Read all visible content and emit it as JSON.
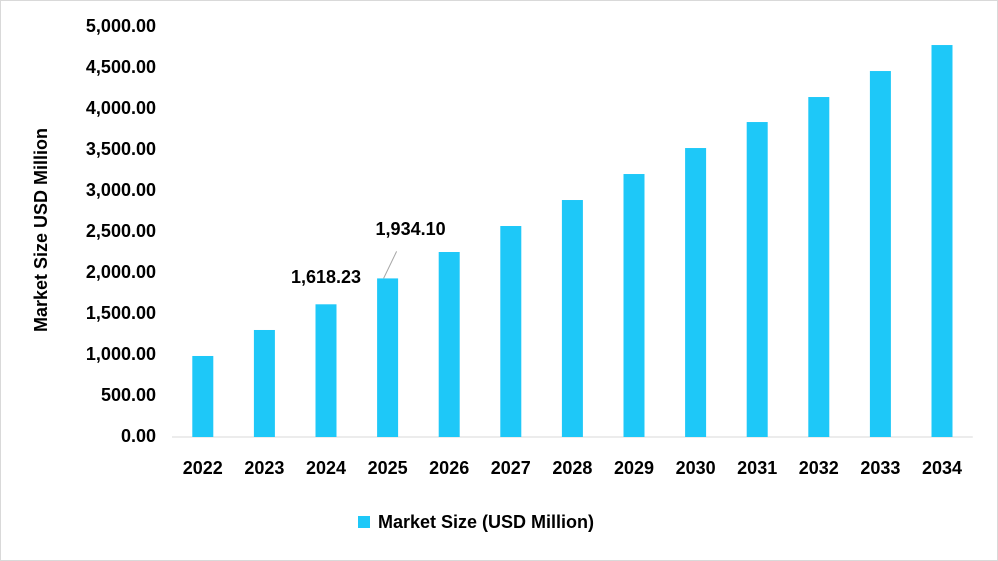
{
  "chart_data": {
    "type": "bar",
    "y_label": "Market Size USD Million",
    "categories": [
      "2022",
      "2023",
      "2024",
      "2025",
      "2026",
      "2027",
      "2028",
      "2029",
      "2030",
      "2031",
      "2032",
      "2033",
      "2034"
    ],
    "series": [
      {
        "name": "Market Size (USD Million)",
        "color": "#1ec8f8",
        "values": [
          988,
          1305,
          1618.23,
          1934.1,
          2256,
          2573,
          2890,
          3207,
          3524,
          3841,
          4146,
          4463,
          4780
        ],
        "value_labels": [
          null,
          null,
          "1,618.23",
          "1,934.10",
          null,
          null,
          null,
          null,
          null,
          null,
          null,
          null,
          null
        ]
      }
    ],
    "ylim": [
      0,
      5000
    ],
    "yticks": [
      {
        "value": 0,
        "label": "0.00"
      },
      {
        "value": 500,
        "label": "500.00"
      },
      {
        "value": 1000,
        "label": "1,000.00"
      },
      {
        "value": 1500,
        "label": "1,500.00"
      },
      {
        "value": 2000,
        "label": "2,000.00"
      },
      {
        "value": 2500,
        "label": "2,500.00"
      },
      {
        "value": 3000,
        "label": "3,000.00"
      },
      {
        "value": 3500,
        "label": "3,500.00"
      },
      {
        "value": 4000,
        "label": "4,000.00"
      },
      {
        "value": 4500,
        "label": "4,500.00"
      },
      {
        "value": 5000,
        "label": "5,000.00"
      }
    ],
    "grid": false,
    "legend": "bottom"
  }
}
